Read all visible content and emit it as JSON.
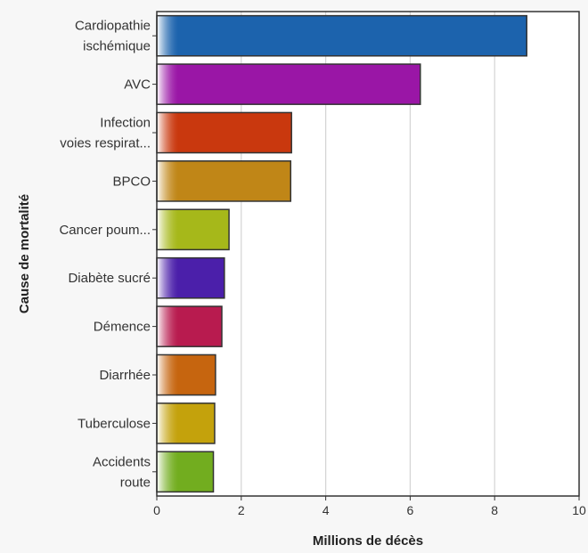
{
  "chart_data": {
    "type": "bar",
    "orientation": "horizontal",
    "categories": [
      [
        "Cardiopathie",
        "ischémique"
      ],
      [
        "AVC"
      ],
      [
        "Infection",
        "voies respirat..."
      ],
      [
        "BPCO"
      ],
      [
        "Cancer poum..."
      ],
      [
        "Diabète sucré"
      ],
      [
        "Démence"
      ],
      [
        "Diarrhée"
      ],
      [
        "Tuberculose"
      ],
      [
        "Accidents",
        "route"
      ]
    ],
    "values": [
      8.76,
      6.24,
      3.19,
      3.17,
      1.71,
      1.6,
      1.54,
      1.39,
      1.37,
      1.34
    ],
    "colors": [
      "#1c63ad",
      "#9a16a6",
      "#c9380e",
      "#c08617",
      "#a6b81a",
      "#4b1faa",
      "#b81b4f",
      "#c6650f",
      "#c4a20c",
      "#72ad1f"
    ],
    "title": "",
    "xlabel": "Millions de décès",
    "ylabel": "Cause de mortalité",
    "xlim": [
      0,
      10
    ],
    "xticks": [
      "0",
      "2",
      "4",
      "6",
      "8",
      "10"
    ],
    "grid": true
  }
}
